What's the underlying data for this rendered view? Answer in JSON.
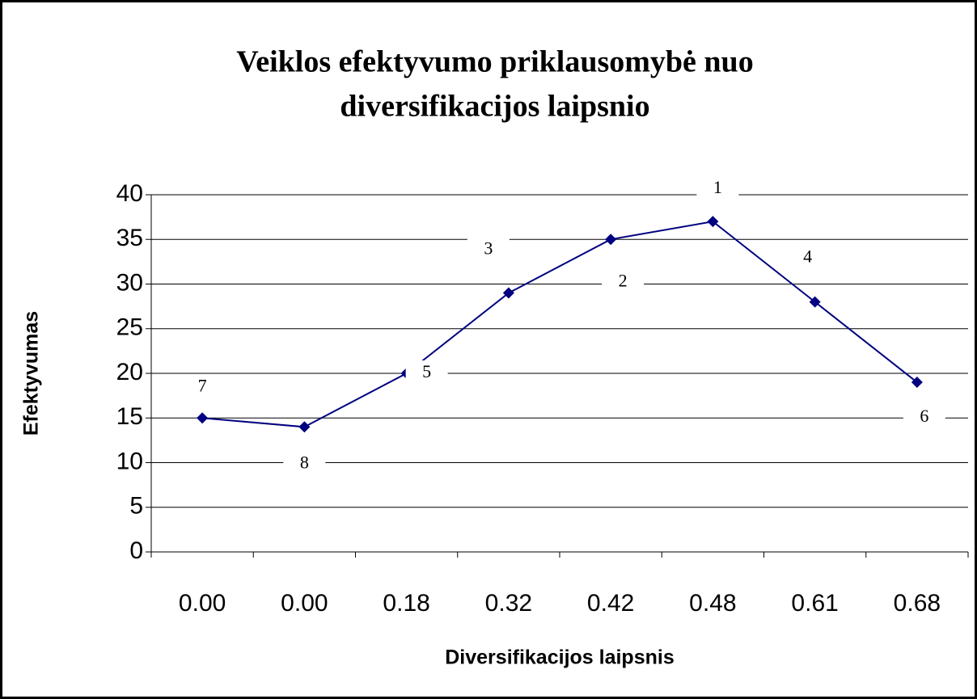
{
  "chart_data": {
    "type": "line",
    "title": [
      "Veiklos efektyvumo priklausomybė nuo",
      "diversifikacijos laipsnio"
    ],
    "x_label": "Diversifikacijos laipsnis",
    "y_label": "Efektyvumas",
    "categories": [
      "0.00",
      "0.00",
      "0.18",
      "0.32",
      "0.42",
      "0.48",
      "0.61",
      "0.68"
    ],
    "series": [
      {
        "name": "Efektyvumas",
        "color": "#000080",
        "values": [
          15,
          14,
          20,
          29,
          35,
          37,
          28,
          19
        ]
      }
    ],
    "point_labels": [
      "7",
      "8",
      "5",
      "3",
      "2",
      "1",
      "4",
      "6"
    ],
    "ylim": [
      0,
      40
    ],
    "yticks": [
      0,
      5,
      10,
      15,
      20,
      25,
      30,
      35,
      40
    ],
    "grid": true
  }
}
